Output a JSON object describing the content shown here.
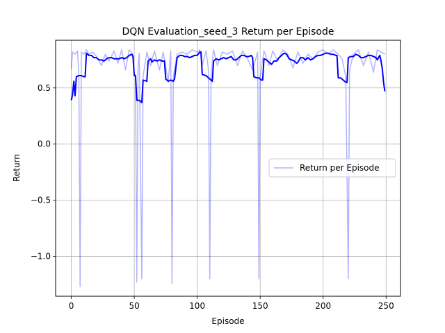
{
  "chart_data": {
    "type": "line",
    "title": "DQN Evaluation_seed_3 Return per Episode",
    "xlabel": "Episode",
    "ylabel": "Return",
    "xlim": [
      -12.45,
      261.45
    ],
    "ylim": [
      -1.355,
      0.925
    ],
    "xticks": [
      0,
      50,
      100,
      150,
      200,
      250
    ],
    "yticks": [
      -1.0,
      -0.5,
      0.0,
      0.5
    ],
    "ytick_labels": [
      "−1.0",
      "−0.5",
      "0.0",
      "0.5"
    ],
    "grid": true,
    "legend": {
      "position": "center-right",
      "entries": [
        "Return per Episode"
      ]
    },
    "series": [
      {
        "name": "Return per Episode",
        "style": "raw",
        "color": "#0000ff",
        "opacity": 0.3,
        "anchors": [
          [
            0,
            0.67
          ],
          [
            1,
            0.82
          ],
          [
            3,
            0.8
          ],
          [
            5,
            0.83
          ],
          [
            6,
            0.6
          ],
          [
            7,
            -1.27
          ],
          [
            8,
            0.82
          ],
          [
            10,
            0.8
          ],
          [
            12,
            0.84
          ],
          [
            14,
            0.8
          ],
          [
            17,
            0.82
          ],
          [
            20,
            0.78
          ],
          [
            24,
            0.7
          ],
          [
            27,
            0.8
          ],
          [
            30,
            0.74
          ],
          [
            34,
            0.83
          ],
          [
            37,
            0.72
          ],
          [
            40,
            0.84
          ],
          [
            43,
            0.66
          ],
          [
            46,
            0.84
          ],
          [
            49,
            0.8
          ],
          [
            50,
            0.62
          ],
          [
            51,
            0.62
          ],
          [
            52,
            -1.23
          ],
          [
            53,
            0.68
          ],
          [
            54,
            0.81
          ],
          [
            56,
            -1.2
          ],
          [
            57,
            0.6
          ],
          [
            60,
            0.82
          ],
          [
            63,
            0.7
          ],
          [
            66,
            0.83
          ],
          [
            70,
            0.66
          ],
          [
            73,
            0.82
          ],
          [
            77,
            0.55
          ],
          [
            79,
            0.83
          ],
          [
            80,
            -1.24
          ],
          [
            81,
            0.6
          ],
          [
            84,
            0.8
          ],
          [
            88,
            0.82
          ],
          [
            92,
            0.8
          ],
          [
            96,
            0.84
          ],
          [
            100,
            0.82
          ],
          [
            102,
            0.84
          ],
          [
            104,
            0.7
          ],
          [
            107,
            0.83
          ],
          [
            109,
            0.66
          ],
          [
            110,
            -1.2
          ],
          [
            111,
            0.62
          ],
          [
            113,
            0.84
          ],
          [
            116,
            0.7
          ],
          [
            120,
            0.82
          ],
          [
            124,
            0.8
          ],
          [
            128,
            0.83
          ],
          [
            132,
            0.7
          ],
          [
            136,
            0.83
          ],
          [
            140,
            0.76
          ],
          [
            144,
            0.66
          ],
          [
            148,
            0.82
          ],
          [
            149,
            -1.2
          ],
          [
            150,
            0.6
          ],
          [
            153,
            0.83
          ],
          [
            157,
            0.7
          ],
          [
            160,
            0.83
          ],
          [
            164,
            0.74
          ],
          [
            168,
            0.84
          ],
          [
            172,
            0.8
          ],
          [
            176,
            0.68
          ],
          [
            180,
            0.82
          ],
          [
            184,
            0.72
          ],
          [
            188,
            0.8
          ],
          [
            192,
            0.76
          ],
          [
            196,
            0.82
          ],
          [
            200,
            0.84
          ],
          [
            204,
            0.8
          ],
          [
            208,
            0.84
          ],
          [
            212,
            0.8
          ],
          [
            215,
            0.76
          ],
          [
            218,
            0.6
          ],
          [
            220,
            -1.2
          ],
          [
            221,
            0.66
          ],
          [
            224,
            0.8
          ],
          [
            228,
            0.84
          ],
          [
            232,
            0.7
          ],
          [
            236,
            0.82
          ],
          [
            240,
            0.64
          ],
          [
            243,
            0.84
          ],
          [
            246,
            0.82
          ],
          [
            249,
            0.8
          ]
        ]
      },
      {
        "name": "",
        "style": "smoothed",
        "color": "#0000ff",
        "opacity": 1.0,
        "points": [
          [
            0,
            0.39
          ],
          [
            1,
            0.44
          ],
          [
            2,
            0.56
          ],
          [
            3,
            0.43
          ],
          [
            4,
            0.6
          ],
          [
            6,
            0.61
          ],
          [
            8,
            0.61
          ],
          [
            10,
            0.6
          ],
          [
            11,
            0.6
          ],
          [
            12,
            0.81
          ],
          [
            14,
            0.79
          ],
          [
            16,
            0.79
          ],
          [
            18,
            0.77
          ],
          [
            20,
            0.77
          ],
          [
            22,
            0.75
          ],
          [
            24,
            0.75
          ],
          [
            26,
            0.74
          ],
          [
            28,
            0.76
          ],
          [
            30,
            0.77
          ],
          [
            32,
            0.77
          ],
          [
            34,
            0.76
          ],
          [
            36,
            0.76
          ],
          [
            38,
            0.76
          ],
          [
            40,
            0.77
          ],
          [
            42,
            0.76
          ],
          [
            44,
            0.77
          ],
          [
            46,
            0.79
          ],
          [
            48,
            0.8
          ],
          [
            49,
            0.78
          ],
          [
            50,
            0.61
          ],
          [
            51,
            0.61
          ],
          [
            52,
            0.39
          ],
          [
            54,
            0.39
          ],
          [
            56,
            0.37
          ],
          [
            57,
            0.57
          ],
          [
            60,
            0.56
          ],
          [
            61,
            0.74
          ],
          [
            63,
            0.76
          ],
          [
            64,
            0.73
          ],
          [
            66,
            0.75
          ],
          [
            68,
            0.74
          ],
          [
            70,
            0.75
          ],
          [
            72,
            0.74
          ],
          [
            74,
            0.74
          ],
          [
            75,
            0.58
          ],
          [
            77,
            0.56
          ],
          [
            79,
            0.57
          ],
          [
            81,
            0.56
          ],
          [
            82,
            0.58
          ],
          [
            84,
            0.77
          ],
          [
            86,
            0.79
          ],
          [
            88,
            0.79
          ],
          [
            90,
            0.78
          ],
          [
            92,
            0.78
          ],
          [
            94,
            0.77
          ],
          [
            96,
            0.78
          ],
          [
            98,
            0.79
          ],
          [
            100,
            0.79
          ],
          [
            102,
            0.82
          ],
          [
            103,
            0.82
          ],
          [
            104,
            0.62
          ],
          [
            107,
            0.61
          ],
          [
            110,
            0.58
          ],
          [
            112,
            0.56
          ],
          [
            113,
            0.74
          ],
          [
            115,
            0.76
          ],
          [
            117,
            0.75
          ],
          [
            119,
            0.76
          ],
          [
            121,
            0.77
          ],
          [
            123,
            0.76
          ],
          [
            125,
            0.77
          ],
          [
            127,
            0.78
          ],
          [
            129,
            0.75
          ],
          [
            131,
            0.75
          ],
          [
            133,
            0.77
          ],
          [
            135,
            0.79
          ],
          [
            137,
            0.79
          ],
          [
            139,
            0.78
          ],
          [
            141,
            0.78
          ],
          [
            143,
            0.79
          ],
          [
            144,
            0.77
          ],
          [
            145,
            0.6
          ],
          [
            147,
            0.59
          ],
          [
            149,
            0.59
          ],
          [
            151,
            0.57
          ],
          [
            152,
            0.57
          ],
          [
            153,
            0.76
          ],
          [
            155,
            0.75
          ],
          [
            157,
            0.73
          ],
          [
            159,
            0.71
          ],
          [
            161,
            0.74
          ],
          [
            163,
            0.74
          ],
          [
            165,
            0.77
          ],
          [
            167,
            0.79
          ],
          [
            169,
            0.81
          ],
          [
            171,
            0.8
          ],
          [
            173,
            0.76
          ],
          [
            175,
            0.75
          ],
          [
            177,
            0.74
          ],
          [
            179,
            0.72
          ],
          [
            180,
            0.73
          ],
          [
            182,
            0.77
          ],
          [
            184,
            0.77
          ],
          [
            186,
            0.75
          ],
          [
            188,
            0.77
          ],
          [
            190,
            0.75
          ],
          [
            192,
            0.76
          ],
          [
            194,
            0.78
          ],
          [
            196,
            0.79
          ],
          [
            198,
            0.79
          ],
          [
            200,
            0.8
          ],
          [
            202,
            0.81
          ],
          [
            204,
            0.81
          ],
          [
            206,
            0.8
          ],
          [
            208,
            0.8
          ],
          [
            210,
            0.79
          ],
          [
            211,
            0.79
          ],
          [
            212,
            0.59
          ],
          [
            214,
            0.59
          ],
          [
            216,
            0.57
          ],
          [
            218,
            0.55
          ],
          [
            219,
            0.55
          ],
          [
            220,
            0.77
          ],
          [
            222,
            0.78
          ],
          [
            224,
            0.78
          ],
          [
            226,
            0.8
          ],
          [
            228,
            0.79
          ],
          [
            230,
            0.77
          ],
          [
            232,
            0.77
          ],
          [
            234,
            0.78
          ],
          [
            236,
            0.79
          ],
          [
            238,
            0.79
          ],
          [
            240,
            0.78
          ],
          [
            242,
            0.77
          ],
          [
            243,
            0.75
          ],
          [
            245,
            0.79
          ],
          [
            246,
            0.74
          ],
          [
            247,
            0.67
          ],
          [
            248,
            0.55
          ],
          [
            249,
            0.47
          ]
        ]
      }
    ]
  }
}
